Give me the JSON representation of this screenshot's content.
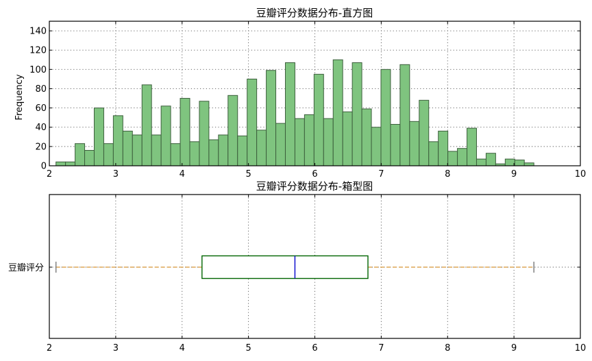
{
  "chart_data": [
    {
      "type": "histogram",
      "title": "豆瓣评分数据分布-直方图",
      "ylabel": "Frequency",
      "xlim": [
        2,
        10
      ],
      "ylim": [
        0,
        150
      ],
      "xticks": [
        2,
        3,
        4,
        5,
        6,
        7,
        8,
        9,
        10
      ],
      "yticks": [
        0,
        20,
        40,
        60,
        80,
        100,
        120,
        140
      ],
      "grid": true,
      "bar_color": "#7fc47f",
      "edge_color": "#3c5e3c",
      "bin_start": 2.1,
      "bin_width": 0.144,
      "counts": [
        4,
        4,
        23,
        16,
        60,
        23,
        52,
        36,
        32,
        84,
        32,
        62,
        23,
        70,
        25,
        67,
        27,
        32,
        73,
        31,
        90,
        37,
        99,
        44,
        107,
        49,
        53,
        95,
        49,
        110,
        56,
        107,
        59,
        40,
        100,
        43,
        105,
        46,
        68,
        25,
        36,
        15,
        18,
        39,
        7,
        13,
        2,
        7,
        6,
        3
      ]
    },
    {
      "type": "box",
      "title": "豆瓣评分数据分布-箱型图",
      "category": "豆瓣评分",
      "xlim": [
        2,
        10
      ],
      "xticks": [
        2,
        3,
        4,
        5,
        6,
        7,
        8,
        9,
        10
      ],
      "grid": true,
      "min": 2.1,
      "q1": 4.3,
      "median": 5.7,
      "q3": 6.8,
      "max": 9.3,
      "box_color": "#006400",
      "median_color": "#0000cc",
      "whisker_color": "#cc7a00",
      "cap_color": "#808080"
    }
  ]
}
